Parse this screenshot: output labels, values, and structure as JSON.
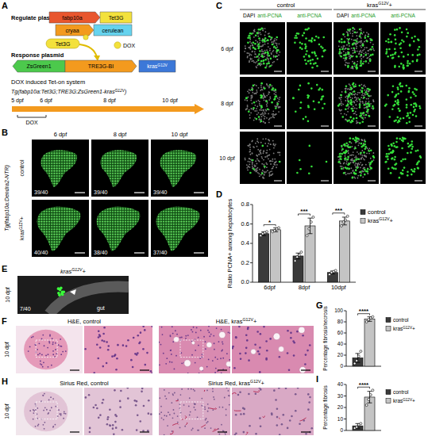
{
  "panel_labels": [
    "A",
    "B",
    "C",
    "D",
    "E",
    "F",
    "G",
    "H",
    "I"
  ],
  "panels": {
    "A": {
      "regulate_title": "Regulate plasmid",
      "regulate_parts": [
        "fabp10a",
        "Tet3G",
        "cryaa",
        "cerulean"
      ],
      "activator": "Tet3G",
      "inducer": "DOX",
      "response_title": "Response plasmid",
      "response_parts": [
        "ZsGreen1",
        "TRE3G-BI",
        "krasG12V"
      ],
      "timeline_title": "DOX induced Tet-on system",
      "genotype": "Tg(fabp10a:Tet3G;TRE3G:ZsGreen1-krasG12V)",
      "timeline": [
        "5 dpf",
        "6 dpf",
        "8 dpf",
        "10 dpf"
      ],
      "treatment": "DOX"
    },
    "B": {
      "columns": [
        "6 dpf",
        "8 dpf",
        "10 dpf"
      ],
      "transgene": "Tg(fabp10a:Dendra2-NTR)",
      "rows": [
        "control",
        "krasG12V+"
      ],
      "counts": [
        [
          "39/40",
          "39/40",
          "39/40"
        ],
        [
          "40/40",
          "38/40",
          "37/40"
        ]
      ]
    },
    "C": {
      "groups": [
        "control",
        "krasG12V+"
      ],
      "columns": [
        [
          "DAPI",
          "anti-PCNA"
        ],
        [
          "anti-PCNA"
        ],
        [
          "DAPI",
          "anti-PCNA"
        ],
        [
          "anti-PCNA"
        ]
      ],
      "rows": [
        "6 dpf",
        "8 dpf",
        "10 dpf"
      ]
    },
    "E": {
      "title": "krasG12V+",
      "row": "10 dpf",
      "count": "7/40",
      "organ": "gut"
    },
    "F": {
      "row": "10 dpf",
      "titles": [
        "H&E, control",
        "H&E, krasG12V+"
      ]
    },
    "H": {
      "row": "10 dpf",
      "titles": [
        "Sirius Red, control",
        "Sirius Red, krasG12V+"
      ]
    }
  },
  "chart_data": [
    {
      "type": "bar",
      "ylabel": "Ratio PCNA+ among hepatocytes",
      "categories": [
        "6dpf",
        "8dpf",
        "10dpf"
      ],
      "series": [
        {
          "name": "control",
          "color": "#3a3a3a",
          "values": [
            0.5,
            0.27,
            0.1
          ],
          "errors": [
            0.02,
            0.03,
            0.015
          ],
          "points": [
            [
              0.48,
              0.5,
              0.51,
              0.52
            ],
            [
              0.22,
              0.26,
              0.28,
              0.31
            ],
            [
              0.08,
              0.1,
              0.11,
              0.12
            ]
          ]
        },
        {
          "name": "krasG12V+",
          "color": "#c4c4c4",
          "values": [
            0.54,
            0.58,
            0.63
          ],
          "errors": [
            0.02,
            0.08,
            0.04
          ],
          "points": [
            [
              0.52,
              0.53,
              0.55,
              0.56
            ],
            [
              0.48,
              0.55,
              0.62,
              0.67
            ],
            [
              0.58,
              0.62,
              0.64,
              0.68
            ]
          ]
        }
      ],
      "ylim": [
        0,
        0.8
      ],
      "yticks": [
        {
          "value": 0,
          "label": "0.0"
        },
        0.2,
        0.4,
        0.6,
        0.8
      ],
      "annotations": [
        "*",
        "***",
        "***"
      ],
      "legend": "right",
      "grid": false
    },
    {
      "type": "bar",
      "ylabel": "Percentage fibrosis/necrosis",
      "categories": [
        null
      ],
      "series": [
        {
          "name": "control",
          "color": "#3a3a3a",
          "values": [
            15
          ],
          "errors": [
            8
          ],
          "points": [
            [
              5,
              10,
              18,
              27
            ]
          ]
        },
        {
          "name": "krasG12V+",
          "color": "#c4c4c4",
          "values": [
            85
          ],
          "errors": [
            4
          ],
          "points": [
            [
              80,
              84,
              87,
              89
            ]
          ]
        }
      ],
      "ylim": [
        0,
        100
      ],
      "yticks": [
        0,
        20,
        40,
        60,
        80,
        100
      ],
      "annotations": [
        "****"
      ],
      "legend": "right",
      "grid": false
    },
    {
      "type": "bar",
      "ylabel": "Percentage fibrosis",
      "categories": [
        null
      ],
      "series": [
        {
          "name": "control",
          "color": "#3a3a3a",
          "values": [
            4
          ],
          "errors": [
            2
          ],
          "points": [
            [
              2,
              3,
              5,
              6
            ]
          ]
        },
        {
          "name": "krasG12V+",
          "color": "#c4c4c4",
          "values": [
            29
          ],
          "errors": [
            5
          ],
          "points": [
            [
              22,
              27,
              31,
              35
            ]
          ]
        }
      ],
      "ylim": [
        0,
        40
      ],
      "yticks": [
        0,
        10,
        20,
        30,
        40
      ],
      "annotations": [
        "****"
      ],
      "legend": "right",
      "grid": false
    }
  ]
}
